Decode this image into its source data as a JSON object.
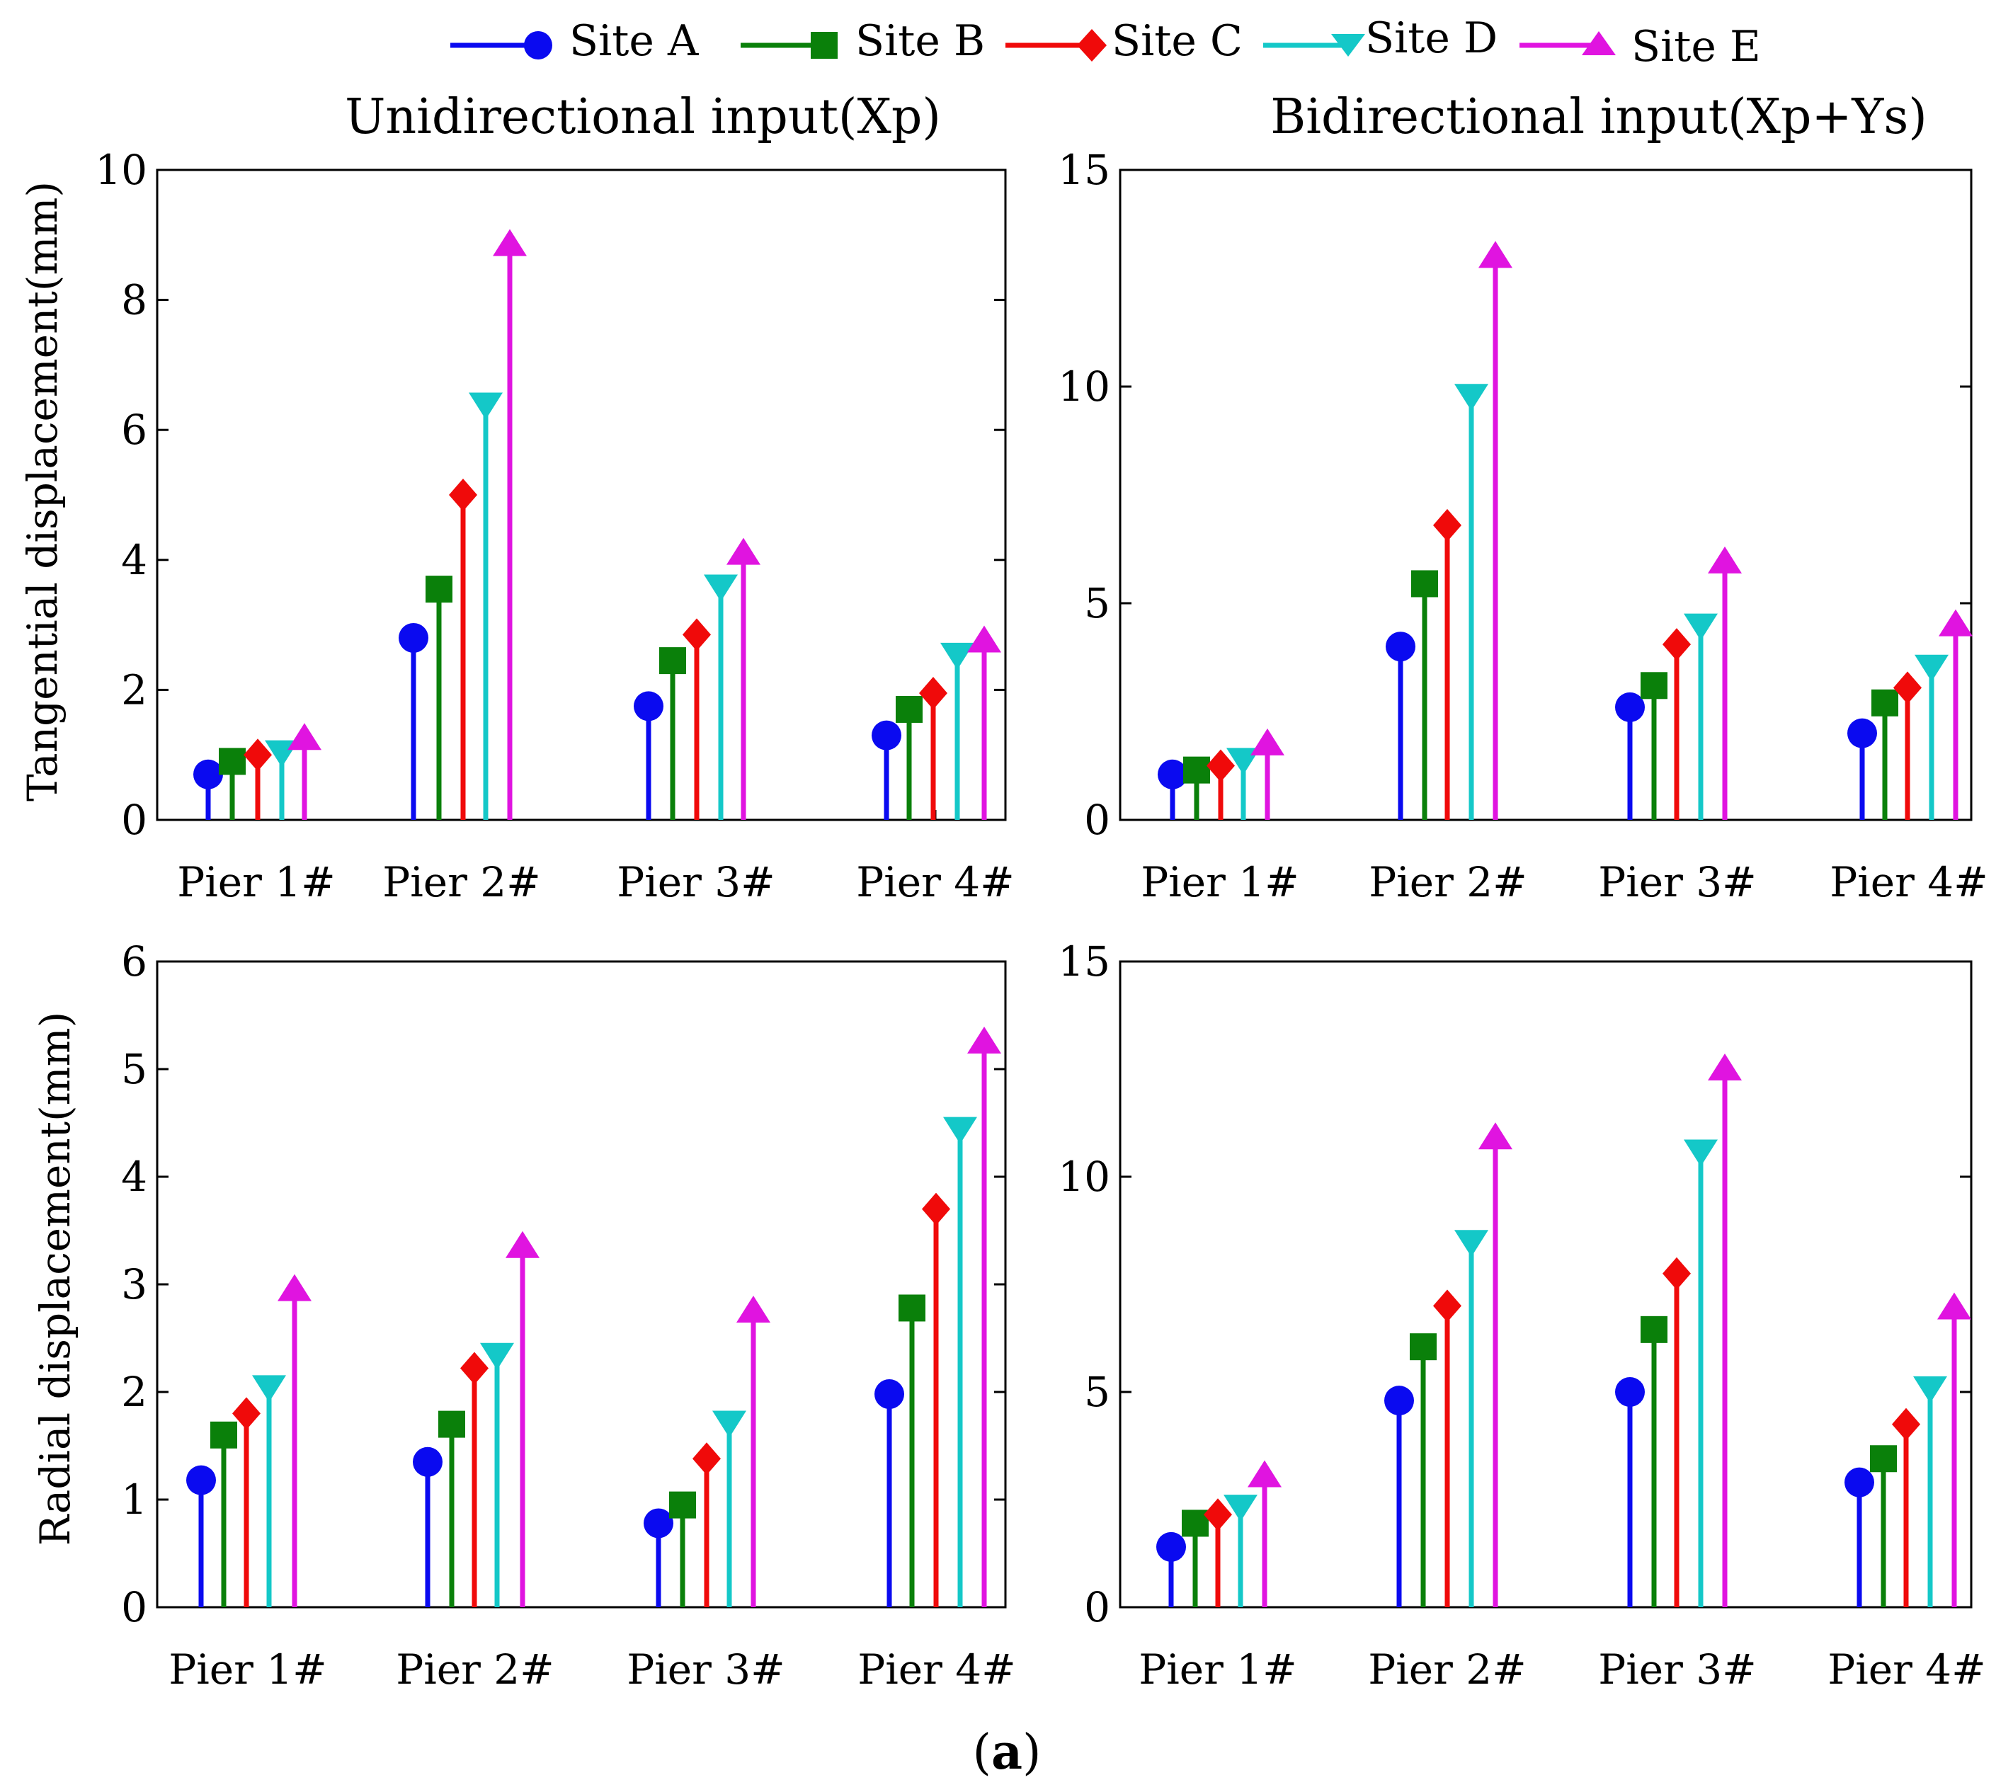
{
  "figure": {
    "caption": "a"
  },
  "legend": {
    "entries": [
      {
        "name": "Site A",
        "color": "#0a0af0",
        "marker": "circle"
      },
      {
        "name": "Site B",
        "color": "#0a800a",
        "marker": "square"
      },
      {
        "name": "Site C",
        "color": "#f00a0a",
        "marker": "diamond"
      },
      {
        "name": "Site D",
        "color": "#14c8c8",
        "marker": "triangle-down"
      },
      {
        "name": "Site E",
        "color": "#e014e0",
        "marker": "triangle-up"
      }
    ]
  },
  "columns": {
    "left_title": "Unidirectional input(Xp)",
    "right_title": "Bidirectional input(Xp+Ys)"
  },
  "rows": {
    "top_ylabel": "Tangential displacement(mm)",
    "bottom_ylabel": "Radial displacement(mm)"
  },
  "chart_data": [
    {
      "id": "tangential-uni",
      "type": "stem",
      "title": "Unidirectional input(Xp)",
      "ylabel": "Tangential displacement(mm)",
      "categories": [
        "Pier 1#",
        "Pier 2#",
        "Pier 3#",
        "Pier 4#"
      ],
      "ylim": [
        0,
        10
      ],
      "yticks": [
        0,
        2,
        4,
        6,
        8,
        10
      ],
      "series": [
        {
          "name": "Site A",
          "values": [
            0.7,
            2.8,
            1.75,
            1.3
          ]
        },
        {
          "name": "Site B",
          "values": [
            0.9,
            3.55,
            2.45,
            1.7
          ]
        },
        {
          "name": "Site C",
          "values": [
            1.0,
            5.0,
            2.85,
            1.95
          ]
        },
        {
          "name": "Site D",
          "values": [
            1.05,
            6.4,
            3.6,
            2.55
          ]
        },
        {
          "name": "Site E",
          "values": [
            1.25,
            8.85,
            4.1,
            2.75
          ]
        }
      ]
    },
    {
      "id": "tangential-bi",
      "type": "stem",
      "title": "Bidirectional input(Xp+Ys)",
      "ylabel": "",
      "categories": [
        "Pier 1#",
        "Pier 2#",
        "Pier 3#",
        "Pier 4#"
      ],
      "ylim": [
        0,
        15
      ],
      "yticks": [
        0,
        5,
        10,
        15
      ],
      "series": [
        {
          "name": "Site A",
          "values": [
            1.05,
            4.0,
            2.6,
            2.0
          ]
        },
        {
          "name": "Site B",
          "values": [
            1.15,
            5.45,
            3.1,
            2.7
          ]
        },
        {
          "name": "Site C",
          "values": [
            1.25,
            6.8,
            4.05,
            3.05
          ]
        },
        {
          "name": "Site D",
          "values": [
            1.4,
            9.8,
            4.5,
            3.55
          ]
        },
        {
          "name": "Site E",
          "values": [
            1.75,
            13.0,
            5.95,
            4.5
          ]
        }
      ]
    },
    {
      "id": "radial-uni",
      "type": "stem",
      "title": "",
      "ylabel": "Radial displacement(mm)",
      "categories": [
        "Pier 1#",
        "Pier 2#",
        "Pier 3#",
        "Pier 4#"
      ],
      "ylim": [
        0,
        6
      ],
      "yticks": [
        0,
        1,
        2,
        3,
        4,
        5,
        6
      ],
      "series": [
        {
          "name": "Site A",
          "values": [
            1.18,
            1.35,
            0.78,
            1.98
          ]
        },
        {
          "name": "Site B",
          "values": [
            1.6,
            1.7,
            0.95,
            2.78
          ]
        },
        {
          "name": "Site C",
          "values": [
            1.8,
            2.22,
            1.38,
            3.7
          ]
        },
        {
          "name": "Site D",
          "values": [
            2.05,
            2.35,
            1.72,
            4.45
          ]
        },
        {
          "name": "Site E",
          "values": [
            2.95,
            3.35,
            2.75,
            5.25
          ]
        }
      ]
    },
    {
      "id": "radial-bi",
      "type": "stem",
      "title": "",
      "ylabel": "",
      "categories": [
        "Pier 1#",
        "Pier 2#",
        "Pier 3#",
        "Pier 4#"
      ],
      "ylim": [
        0,
        15
      ],
      "yticks": [
        0,
        5,
        10,
        15
      ],
      "series": [
        {
          "name": "Site A",
          "values": [
            1.4,
            4.8,
            5.0,
            2.9
          ]
        },
        {
          "name": "Site B",
          "values": [
            1.95,
            6.05,
            6.45,
            3.45
          ]
        },
        {
          "name": "Site C",
          "values": [
            2.15,
            7.0,
            7.75,
            4.25
          ]
        },
        {
          "name": "Site D",
          "values": [
            2.35,
            8.5,
            10.6,
            5.1
          ]
        },
        {
          "name": "Site E",
          "values": [
            3.05,
            10.9,
            12.5,
            6.95
          ]
        }
      ]
    }
  ]
}
